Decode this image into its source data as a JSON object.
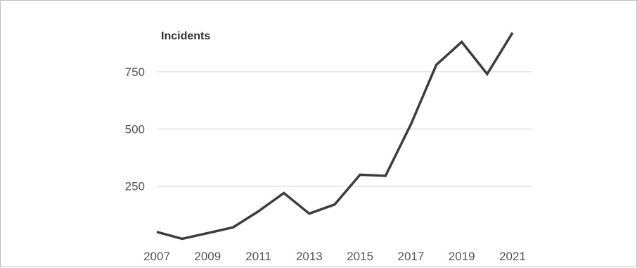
{
  "chart_data": {
    "type": "line",
    "ylabel": "Incidents",
    "x": [
      2007,
      2008,
      2009,
      2010,
      2011,
      2012,
      2013,
      2014,
      2015,
      2016,
      2017,
      2018,
      2019,
      2020,
      2021
    ],
    "series": [
      {
        "values": [
          50,
          20,
          45,
          70,
          140,
          220,
          130,
          170,
          300,
          295,
          520,
          780,
          880,
          740,
          920
        ]
      }
    ],
    "x_tick_labels": [
      "2007",
      "2009",
      "2011",
      "2013",
      "2015",
      "2017",
      "2019",
      "2021"
    ],
    "y_tick_labels": [
      "250",
      "500",
      "750"
    ],
    "y_ticks": [
      250,
      500,
      750
    ],
    "ylim": [
      0,
      1000
    ],
    "grid": "horizontal",
    "line_color": "#3d3d3d"
  }
}
